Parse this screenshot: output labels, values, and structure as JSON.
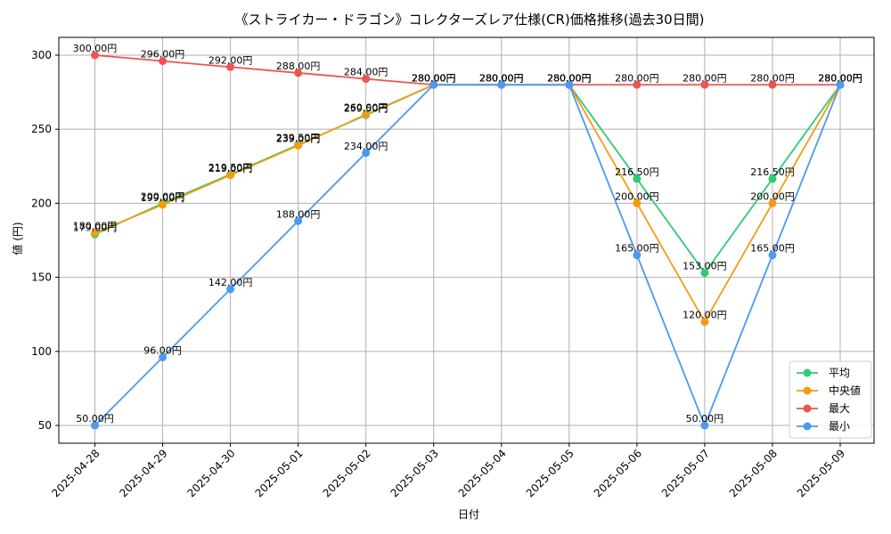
{
  "chart_data": {
    "type": "line",
    "title": "《ストライカー・ドラゴン》コレクターズレア仕様(CR)価格推移(過去30日間)",
    "xlabel": "日付",
    "ylabel": "値 (円)",
    "categories": [
      "2025-04-28",
      "2025-04-29",
      "2025-04-30",
      "2025-05-01",
      "2025-05-02",
      "2025-05-03",
      "2025-05-04",
      "2025-05-05",
      "2025-05-06",
      "2025-05-07",
      "2025-05-08",
      "2025-05-09"
    ],
    "ylim": [
      38,
      312
    ],
    "yticks": [
      50,
      100,
      150,
      200,
      250,
      300
    ],
    "grid": true,
    "legend_position": "lower-right",
    "value_suffix": "円",
    "series": [
      {
        "name": "平均",
        "color": "#2ecc71",
        "values": [
          179,
          200,
          219.5,
          239.5,
          259.5,
          280,
          280,
          280,
          216.5,
          153,
          216.5,
          280
        ]
      },
      {
        "name": "中央値",
        "color": "#f39c12",
        "values": [
          180,
          199,
          219,
          239,
          260,
          280,
          280,
          280,
          200,
          120,
          200,
          280
        ]
      },
      {
        "name": "最大",
        "color": "#ef5350",
        "values": [
          300,
          296,
          292,
          288,
          284,
          280,
          280,
          280,
          280,
          280,
          280,
          280
        ]
      },
      {
        "name": "最小",
        "color": "#4a9af0",
        "values": [
          50,
          96,
          142,
          188,
          234,
          280,
          280,
          280,
          165,
          50,
          165,
          280
        ]
      }
    ]
  }
}
